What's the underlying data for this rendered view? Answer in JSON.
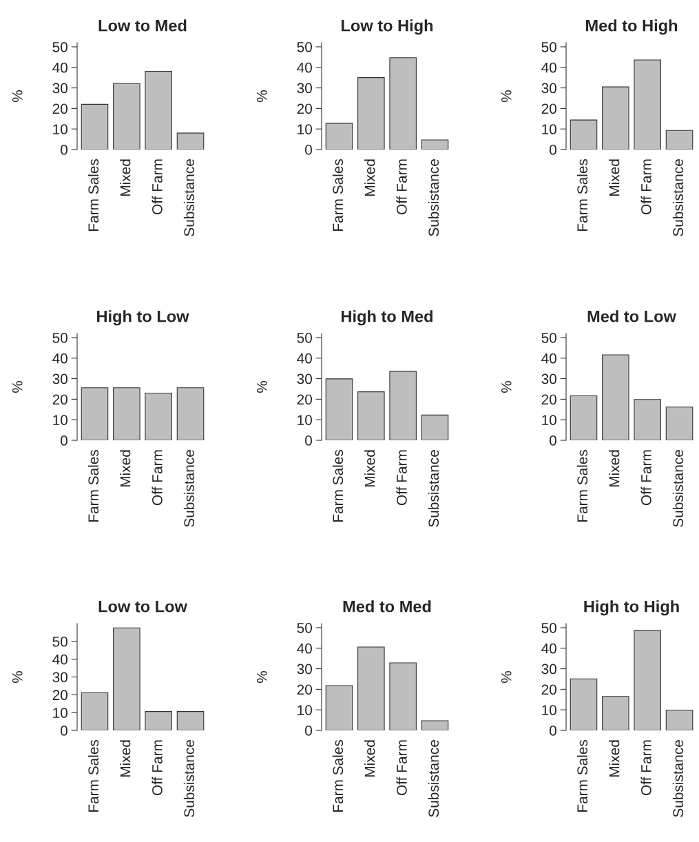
{
  "chart_data": [
    {
      "type": "bar",
      "title": "Low to Med",
      "ylabel": "%",
      "categories": [
        "Farm Sales",
        "Mixed",
        "Off Farm",
        "Subsistance"
      ],
      "values": [
        22.0,
        32.1,
        38.1,
        8.0
      ],
      "color": "#bebebe",
      "ylim": [
        0,
        52
      ],
      "yticks": [
        0,
        10,
        20,
        30,
        40,
        50
      ],
      "grid": false
    },
    {
      "type": "bar",
      "title": "Low to High",
      "ylabel": "%",
      "categories": [
        "Farm Sales",
        "Mixed",
        "Off Farm",
        "Subsistance"
      ],
      "values": [
        12.8,
        35.0,
        44.7,
        4.7
      ],
      "color": "#bebebe",
      "ylim": [
        0,
        52
      ],
      "yticks": [
        0,
        10,
        20,
        30,
        40,
        50
      ],
      "grid": false
    },
    {
      "type": "bar",
      "title": "Med to High",
      "ylabel": "%",
      "categories": [
        "Farm Sales",
        "Mixed",
        "Off Farm",
        "Subsistance"
      ],
      "values": [
        14.4,
        30.5,
        43.6,
        9.3
      ],
      "color": "#bebebe",
      "ylim": [
        0,
        52
      ],
      "yticks": [
        0,
        10,
        20,
        30,
        40,
        50
      ],
      "grid": false
    },
    {
      "type": "bar",
      "title": "High to Low",
      "ylabel": "%",
      "categories": [
        "Farm Sales",
        "Mixed",
        "Off Farm",
        "Subsistance"
      ],
      "values": [
        25.6,
        25.6,
        23.0,
        25.6
      ],
      "color": "#bebebe",
      "ylim": [
        0,
        52
      ],
      "yticks": [
        0,
        10,
        20,
        30,
        40,
        50
      ],
      "grid": false
    },
    {
      "type": "bar",
      "title": "High to Med",
      "ylabel": "%",
      "categories": [
        "Farm Sales",
        "Mixed",
        "Off Farm",
        "Subsistance"
      ],
      "values": [
        29.9,
        23.6,
        33.6,
        12.3
      ],
      "color": "#bebebe",
      "ylim": [
        0,
        52
      ],
      "yticks": [
        0,
        10,
        20,
        30,
        40,
        50
      ],
      "grid": false
    },
    {
      "type": "bar",
      "title": "Med to Low",
      "ylabel": "%",
      "categories": [
        "Farm Sales",
        "Mixed",
        "Off Farm",
        "Subsistance"
      ],
      "values": [
        21.7,
        41.6,
        19.9,
        16.2
      ],
      "color": "#bebebe",
      "ylim": [
        0,
        52
      ],
      "yticks": [
        0,
        10,
        20,
        30,
        40,
        50
      ],
      "grid": false
    },
    {
      "type": "bar",
      "title": "Low to Low",
      "ylabel": "%",
      "categories": [
        "Farm Sales",
        "Mixed",
        "Off Farm",
        "Subsistance"
      ],
      "values": [
        21.2,
        57.6,
        10.6,
        10.6
      ],
      "color": "#bebebe",
      "ylim": [
        0,
        60
      ],
      "yticks": [
        0,
        10,
        20,
        30,
        40,
        50
      ],
      "grid": false
    },
    {
      "type": "bar",
      "title": "Med to Med",
      "ylabel": "%",
      "categories": [
        "Farm Sales",
        "Mixed",
        "Off Farm",
        "Subsistance"
      ],
      "values": [
        21.8,
        40.6,
        32.9,
        4.7
      ],
      "color": "#bebebe",
      "ylim": [
        0,
        52
      ],
      "yticks": [
        0,
        10,
        20,
        30,
        40,
        50
      ],
      "grid": false
    },
    {
      "type": "bar",
      "title": "High to High",
      "ylabel": "%",
      "categories": [
        "Farm Sales",
        "Mixed",
        "Off Farm",
        "Subsistance"
      ],
      "values": [
        25.1,
        16.5,
        48.6,
        9.8
      ],
      "color": "#bebebe",
      "ylim": [
        0,
        52
      ],
      "yticks": [
        0,
        10,
        20,
        30,
        40,
        50
      ],
      "grid": false
    }
  ]
}
